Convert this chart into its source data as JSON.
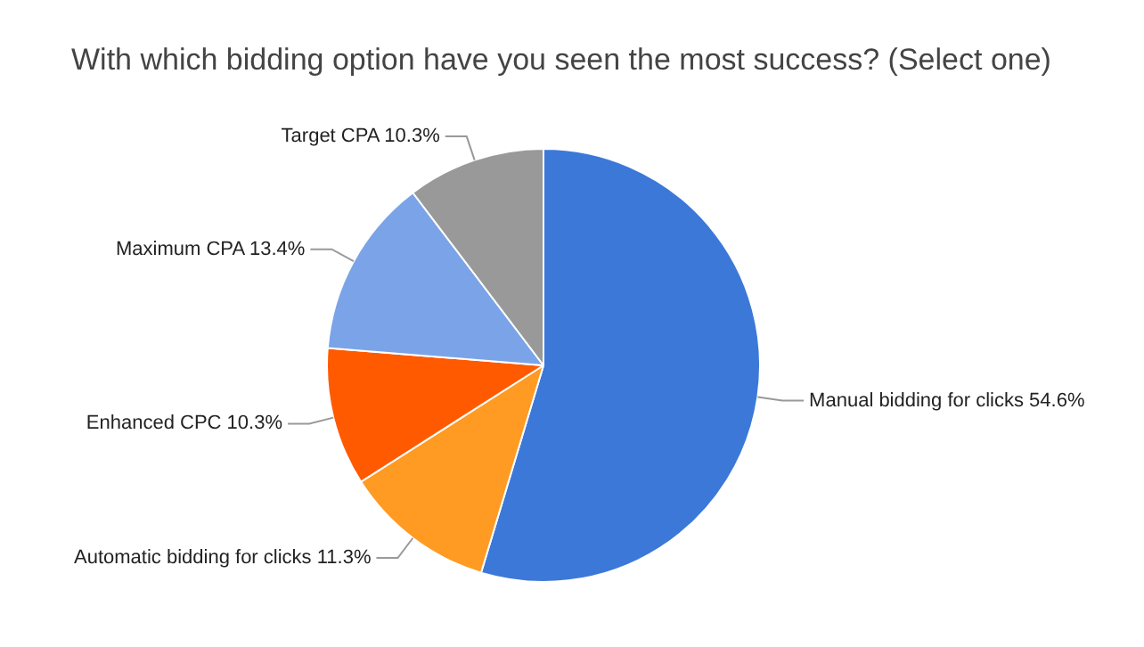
{
  "chart_data": {
    "type": "pie",
    "title": "With which bidding option have you seen the most success? (Select one)",
    "categories": [
      "Manual bidding for clicks",
      "Automatic bidding for clicks",
      "Enhanced CPC",
      "Maximum CPA",
      "Target CPA"
    ],
    "values": [
      54.6,
      11.3,
      10.3,
      13.4,
      10.3
    ],
    "value_labels": [
      "54.6%",
      "11.3%",
      "10.3%",
      "13.4%",
      "10.3%"
    ],
    "colors": [
      "#3c78d8",
      "#ff9a22",
      "#ff5a00",
      "#7ba4e8",
      "#999999"
    ],
    "legend": false
  }
}
